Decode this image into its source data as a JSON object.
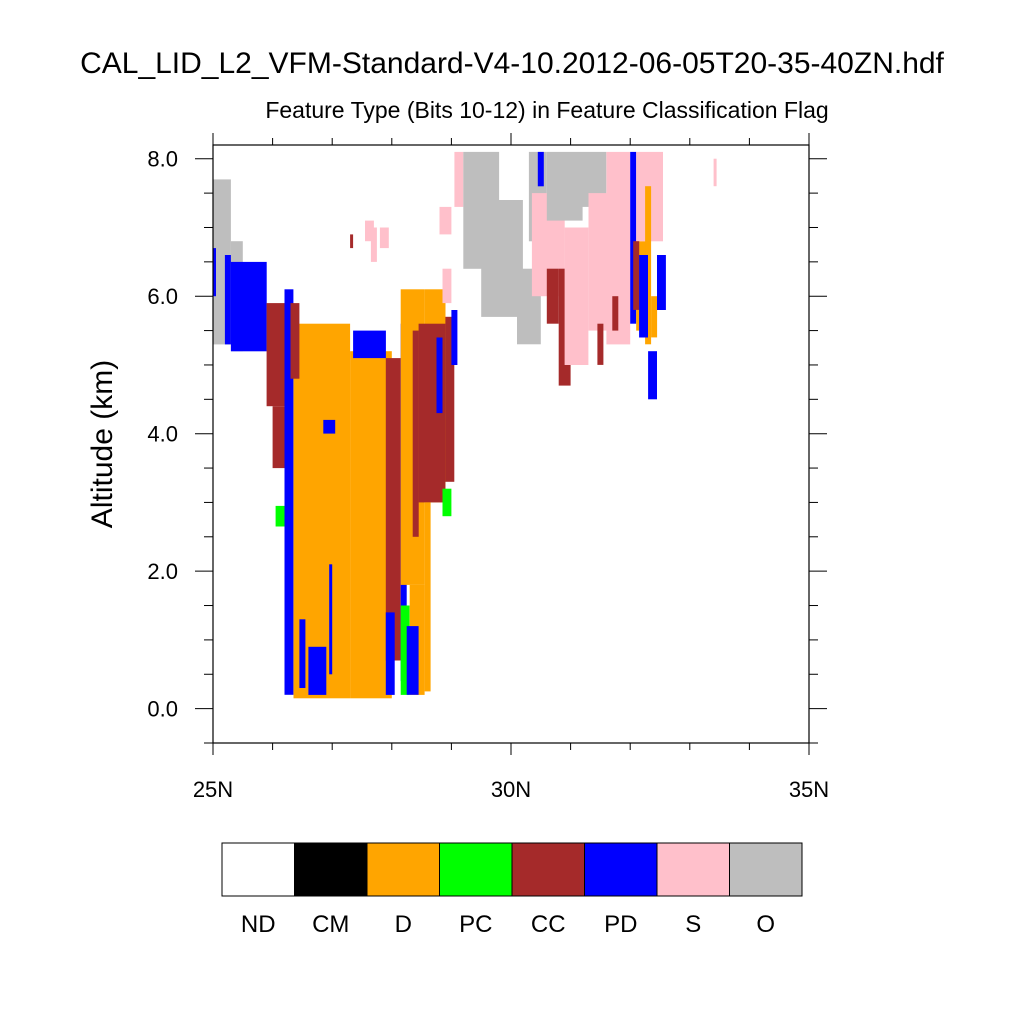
{
  "chart_data": {
    "type": "heatmap",
    "title": "CAL_LID_L2_VFM-Standard-V4-10.2012-06-05T20-35-40ZN.hdf",
    "subtitle": "Feature Type (Bits 10-12) in Feature Classification Flag",
    "xlabel": "",
    "ylabel": "Altitude (km)",
    "xlim": [
      25,
      35
    ],
    "ylim": [
      -0.5,
      8.2
    ],
    "x_ticks": [
      {
        "value": 25,
        "label": "25N"
      },
      {
        "value": 30,
        "label": "30N"
      },
      {
        "value": 35,
        "label": "35N"
      }
    ],
    "y_ticks": [
      {
        "value": 0,
        "label": "0.0"
      },
      {
        "value": 2,
        "label": "2.0"
      },
      {
        "value": 4,
        "label": "4.0"
      },
      {
        "value": 6,
        "label": "6.0"
      },
      {
        "value": 8,
        "label": "8.0"
      }
    ],
    "legend": [
      {
        "key": "ND",
        "label": "ND",
        "color": "#ffffff"
      },
      {
        "key": "CM",
        "label": "CM",
        "color": "#000000"
      },
      {
        "key": "D",
        "label": "D",
        "color": "#ffa500"
      },
      {
        "key": "PC",
        "label": "PC",
        "color": "#00ff00"
      },
      {
        "key": "CC",
        "label": "CC",
        "color": "#a52a2a"
      },
      {
        "key": "PD",
        "label": "PD",
        "color": "#0000ff"
      },
      {
        "key": "S",
        "label": "S",
        "color": "#ffc0cb"
      },
      {
        "key": "O",
        "label": "O",
        "color": "#bebebe"
      }
    ],
    "features": [
      {
        "type": "O",
        "lat": [
          25.0,
          25.3
        ],
        "alt": [
          5.3,
          7.7
        ]
      },
      {
        "type": "O",
        "lat": [
          25.3,
          25.5
        ],
        "alt": [
          5.2,
          6.8
        ]
      },
      {
        "type": "PD",
        "lat": [
          25.0,
          25.05
        ],
        "alt": [
          6.0,
          6.7
        ]
      },
      {
        "type": "PD",
        "lat": [
          25.2,
          25.3
        ],
        "alt": [
          5.3,
          6.6
        ]
      },
      {
        "type": "PD",
        "lat": [
          25.3,
          25.9
        ],
        "alt": [
          5.2,
          6.5
        ]
      },
      {
        "type": "CC",
        "lat": [
          25.9,
          26.2
        ],
        "alt": [
          4.4,
          5.9
        ]
      },
      {
        "type": "CC",
        "lat": [
          26.0,
          26.2
        ],
        "alt": [
          3.5,
          4.4
        ]
      },
      {
        "type": "PD",
        "lat": [
          26.2,
          26.35
        ],
        "alt": [
          0.2,
          6.1
        ]
      },
      {
        "type": "PC",
        "lat": [
          26.05,
          26.2
        ],
        "alt": [
          2.65,
          2.95
        ]
      },
      {
        "type": "D",
        "lat": [
          26.35,
          27.3
        ],
        "alt": [
          0.15,
          5.6
        ]
      },
      {
        "type": "D",
        "lat": [
          27.3,
          28.0
        ],
        "alt": [
          0.15,
          5.2
        ]
      },
      {
        "type": "CC",
        "lat": [
          26.3,
          26.45
        ],
        "alt": [
          4.8,
          5.9
        ]
      },
      {
        "type": "PD",
        "lat": [
          26.45,
          26.55
        ],
        "alt": [
          0.3,
          1.3
        ]
      },
      {
        "type": "PD",
        "lat": [
          26.6,
          26.9
        ],
        "alt": [
          0.2,
          0.9
        ]
      },
      {
        "type": "PD",
        "lat": [
          26.95,
          27.0
        ],
        "alt": [
          0.5,
          2.1
        ]
      },
      {
        "type": "PD",
        "lat": [
          27.35,
          27.9
        ],
        "alt": [
          5.1,
          5.5
        ]
      },
      {
        "type": "PD",
        "lat": [
          26.85,
          27.05
        ],
        "alt": [
          4.0,
          4.2
        ]
      },
      {
        "type": "CC",
        "lat": [
          27.9,
          28.15
        ],
        "alt": [
          0.7,
          5.1
        ]
      },
      {
        "type": "PD",
        "lat": [
          27.9,
          28.05
        ],
        "alt": [
          0.2,
          1.4
        ]
      },
      {
        "type": "PD",
        "lat": [
          28.15,
          28.25
        ],
        "alt": [
          0.4,
          5.6
        ]
      },
      {
        "type": "PC",
        "lat": [
          28.15,
          28.3
        ],
        "alt": [
          0.2,
          1.5
        ]
      },
      {
        "type": "D",
        "lat": [
          28.15,
          28.55
        ],
        "alt": [
          1.8,
          6.1
        ]
      },
      {
        "type": "D",
        "lat": [
          28.3,
          28.55
        ],
        "alt": [
          0.2,
          1.8
        ]
      },
      {
        "type": "CC",
        "lat": [
          28.35,
          28.45
        ],
        "alt": [
          2.5,
          5.5
        ]
      },
      {
        "type": "PD",
        "lat": [
          28.25,
          28.45
        ],
        "alt": [
          0.2,
          1.2
        ]
      },
      {
        "type": "D",
        "lat": [
          28.55,
          28.9
        ],
        "alt": [
          3.0,
          6.1
        ]
      },
      {
        "type": "CC",
        "lat": [
          28.45,
          28.9
        ],
        "alt": [
          3.0,
          5.6
        ]
      },
      {
        "type": "D",
        "lat": [
          28.55,
          28.65
        ],
        "alt": [
          0.25,
          3.0
        ]
      },
      {
        "type": "PD",
        "lat": [
          28.75,
          28.85
        ],
        "alt": [
          4.3,
          5.4
        ]
      },
      {
        "type": "CC",
        "lat": [
          28.9,
          29.05
        ],
        "alt": [
          3.3,
          5.7
        ]
      },
      {
        "type": "PD",
        "lat": [
          29.0,
          29.1
        ],
        "alt": [
          5.0,
          5.8
        ]
      },
      {
        "type": "PC",
        "lat": [
          28.85,
          29.0
        ],
        "alt": [
          2.8,
          3.2
        ]
      },
      {
        "type": "CC",
        "lat": [
          27.3,
          27.35
        ],
        "alt": [
          6.7,
          6.9
        ]
      },
      {
        "type": "S",
        "lat": [
          27.55,
          27.7
        ],
        "alt": [
          6.8,
          7.1
        ]
      },
      {
        "type": "S",
        "lat": [
          27.65,
          27.75
        ],
        "alt": [
          6.5,
          7.0
        ]
      },
      {
        "type": "S",
        "lat": [
          27.8,
          27.95
        ],
        "alt": [
          6.7,
          7.0
        ]
      },
      {
        "type": "S",
        "lat": [
          28.8,
          29.0
        ],
        "alt": [
          6.9,
          7.3
        ]
      },
      {
        "type": "S",
        "lat": [
          28.85,
          29.0
        ],
        "alt": [
          5.9,
          6.4
        ]
      },
      {
        "type": "S",
        "lat": [
          29.05,
          29.2
        ],
        "alt": [
          7.3,
          8.1
        ]
      },
      {
        "type": "O",
        "lat": [
          29.2,
          29.8
        ],
        "alt": [
          6.4,
          8.1
        ]
      },
      {
        "type": "O",
        "lat": [
          29.5,
          30.2
        ],
        "alt": [
          5.7,
          7.4
        ]
      },
      {
        "type": "O",
        "lat": [
          30.1,
          30.5
        ],
        "alt": [
          5.3,
          6.4
        ]
      },
      {
        "type": "O",
        "lat": [
          30.3,
          30.6
        ],
        "alt": [
          6.8,
          8.1
        ]
      },
      {
        "type": "PD",
        "lat": [
          30.45,
          30.55
        ],
        "alt": [
          7.6,
          8.1
        ]
      },
      {
        "type": "S",
        "lat": [
          30.35,
          30.9
        ],
        "alt": [
          6.0,
          7.5
        ]
      },
      {
        "type": "O",
        "lat": [
          30.6,
          31.2
        ],
        "alt": [
          7.1,
          8.1
        ]
      },
      {
        "type": "CC",
        "lat": [
          30.6,
          30.8
        ],
        "alt": [
          5.6,
          6.4
        ]
      },
      {
        "type": "CC",
        "lat": [
          30.8,
          31.0
        ],
        "alt": [
          4.7,
          6.4
        ]
      },
      {
        "type": "S",
        "lat": [
          30.9,
          31.3
        ],
        "alt": [
          5.0,
          7.0
        ]
      },
      {
        "type": "O",
        "lat": [
          31.2,
          31.6
        ],
        "alt": [
          7.3,
          8.1
        ]
      },
      {
        "type": "S",
        "lat": [
          31.3,
          31.7
        ],
        "alt": [
          5.5,
          7.5
        ]
      },
      {
        "type": "S",
        "lat": [
          31.6,
          32.0
        ],
        "alt": [
          5.3,
          8.1
        ]
      },
      {
        "type": "CC",
        "lat": [
          31.45,
          31.55
        ],
        "alt": [
          5.0,
          5.6
        ]
      },
      {
        "type": "CC",
        "lat": [
          31.7,
          31.8
        ],
        "alt": [
          5.5,
          6.0
        ]
      },
      {
        "type": "PD",
        "lat": [
          32.0,
          32.1
        ],
        "alt": [
          5.6,
          8.1
        ]
      },
      {
        "type": "D",
        "lat": [
          32.1,
          32.3
        ],
        "alt": [
          5.5,
          6.8
        ]
      },
      {
        "type": "S",
        "lat": [
          32.1,
          32.55
        ],
        "alt": [
          6.8,
          8.1
        ]
      },
      {
        "type": "D",
        "lat": [
          32.25,
          32.35
        ],
        "alt": [
          5.3,
          7.6
        ]
      },
      {
        "type": "CC",
        "lat": [
          32.05,
          32.15
        ],
        "alt": [
          5.8,
          6.8
        ]
      },
      {
        "type": "PD",
        "lat": [
          32.15,
          32.3
        ],
        "alt": [
          5.4,
          6.6
        ]
      },
      {
        "type": "PD",
        "lat": [
          32.3,
          32.45
        ],
        "alt": [
          4.5,
          5.2
        ]
      },
      {
        "type": "D",
        "lat": [
          32.35,
          32.45
        ],
        "alt": [
          5.4,
          6.0
        ]
      },
      {
        "type": "PD",
        "lat": [
          32.45,
          32.6
        ],
        "alt": [
          5.8,
          6.6
        ]
      },
      {
        "type": "S",
        "lat": [
          33.4,
          33.45
        ],
        "alt": [
          7.6,
          8.0
        ]
      }
    ]
  }
}
